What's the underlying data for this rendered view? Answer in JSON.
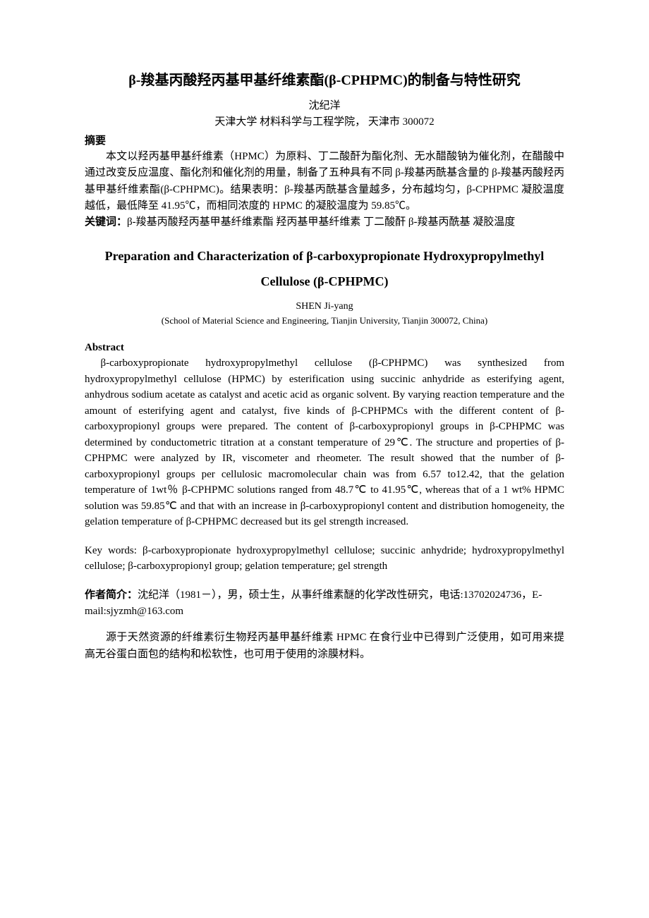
{
  "title_cn": "β-羧基丙酸羟丙基甲基纤维素酯(β-CPHPMC)的制备与特性研究",
  "author_cn": "沈纪洋",
  "affiliation_cn": "天津大学 材料科学与工程学院，  天津市  300072",
  "abstract_label_cn": "摘要",
  "abstract_cn": "本文以羟丙基甲基纤维素（HPMC）为原料、丁二酸酐为酯化剂、无水醋酸钠为催化剂，在醋酸中通过改变反应温度、酯化剂和催化剂的用量，制备了五种具有不同 β-羧基丙酰基含量的 β-羧基丙酸羟丙基甲基纤维素酯(β-CPHPMC)。结果表明：β-羧基丙酰基含量越多，分布越均匀，β-CPHPMC 凝胶温度越低，最低降至 41.95℃，而相同浓度的 HPMC 的凝胶温度为 59.85℃。",
  "keywords_label_cn": "关键词：",
  "keywords_cn": "β-羧基丙酸羟丙基甲基纤维素酯  羟丙基甲基纤维素  丁二酸酐   β-羧基丙酰基   凝胶温度",
  "title_en": "Preparation and Characterization of β-carboxypropionate Hydroxypropylmethyl Cellulose (β-CPHPMC)",
  "author_en": "SHEN Ji-yang",
  "affiliation_en": "(School of Material Science and Engineering, Tianjin University, Tianjin 300072, China)",
  "abstract_label_en": "Abstract",
  "abstract_en": "β-carboxypropionate hydroxypropylmethyl cellulose (β-CPHPMC) was synthesized from hydroxypropylmethyl cellulose (HPMC) by esterification using succinic anhydride as esterifying agent, anhydrous sodium acetate as catalyst and acetic acid as organic solvent. By varying reaction temperature and the amount of esterifying agent and catalyst, five kinds of β-CPHPMCs with the different content of β-carboxypropionyl groups were prepared. The content of β-carboxypropionyl groups in β-CPHPMC was determined by conductometric titration at a constant temperature of 29℃. The structure and properties of β-CPHPMC were analyzed by IR, viscometer and rheometer. The result showed that the number of β-carboxypropionyl groups per cellulosic macromolecular chain was from 6.57 to12.42, that the gelation temperature of 1wt％ β-CPHPMC solutions ranged from 48.7℃ to 41.95℃, whereas that of a 1 wt% HPMC solution was 59.85℃ and that with an increase in β-carboxypropionyl content and distribution homogeneity, the gelation temperature   of β-CPHPMC decreased but its gel strength increased.",
  "keywords_label_en": "Key words: ",
  "keywords_en": "β-carboxypropionate hydroxypropylmethyl cellulose; succinic anhydride; hydroxypropylmethyl cellulose; β-carboxypropionyl group; gelation temperature; gel strength",
  "author_bio_label": "作者简介：",
  "author_bio": "沈纪洋（1981－），男，硕士生，从事纤维素醚的化学改性研究，电话:13702024736，E-mail:sjyzmh@163.com",
  "intro_para": "源于天然资源的纤维素衍生物羟丙基甲基纤维素 HPMC 在食行业中已得到广泛使用，如可用来提高无谷蛋白面包的结构和松软性，也可用于使用的涂膜材料。"
}
